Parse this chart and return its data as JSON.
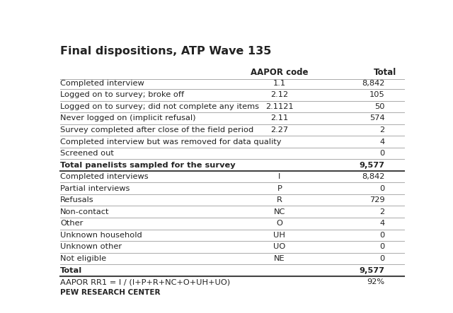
{
  "title": "Final dispositions, ATP Wave 135",
  "col_headers": [
    "",
    "AAPOR code",
    "Total"
  ],
  "rows": [
    {
      "label": "Completed interview",
      "code": "1.1",
      "total": "8,842",
      "bold": false
    },
    {
      "label": "Logged on to survey; broke off",
      "code": "2.12",
      "total": "105",
      "bold": false
    },
    {
      "label": "Logged on to survey; did not complete any items",
      "code": "2.1121",
      "total": "50",
      "bold": false
    },
    {
      "label": "Never logged on (implicit refusal)",
      "code": "2.11",
      "total": "574",
      "bold": false
    },
    {
      "label": "Survey completed after close of the field period",
      "code": "2.27",
      "total": "2",
      "bold": false
    },
    {
      "label": "Completed interview but was removed for data quality",
      "code": "",
      "total": "4",
      "bold": false
    },
    {
      "label": "Screened out",
      "code": "",
      "total": "0",
      "bold": false
    },
    {
      "label": "Total panelists sampled for the survey",
      "code": "",
      "total": "9,577",
      "bold": true
    },
    {
      "label": "Completed interviews",
      "code": "I",
      "total": "8,842",
      "bold": false
    },
    {
      "label": "Partial interviews",
      "code": "P",
      "total": "0",
      "bold": false
    },
    {
      "label": "Refusals",
      "code": "R",
      "total": "729",
      "bold": false
    },
    {
      "label": "Non-contact",
      "code": "NC",
      "total": "2",
      "bold": false
    },
    {
      "label": "Other",
      "code": "O",
      "total": "4",
      "bold": false
    },
    {
      "label": "Unknown household",
      "code": "UH",
      "total": "0",
      "bold": false
    },
    {
      "label": "Unknown other",
      "code": "UO",
      "total": "0",
      "bold": false
    },
    {
      "label": "Not eligible",
      "code": "NE",
      "total": "0",
      "bold": false
    },
    {
      "label": "Total",
      "code": "",
      "total": "9,577",
      "bold": true
    },
    {
      "label": "AAPOR RR1 = I / (I+P+R+NC+O+UH+UO)",
      "code": "",
      "total": "92%",
      "bold": false
    }
  ],
  "footer": "PEW RESEARCH CENTER",
  "thick_line_rows": [
    7,
    16
  ],
  "bg_color": "#ffffff",
  "text_color": "#222222"
}
